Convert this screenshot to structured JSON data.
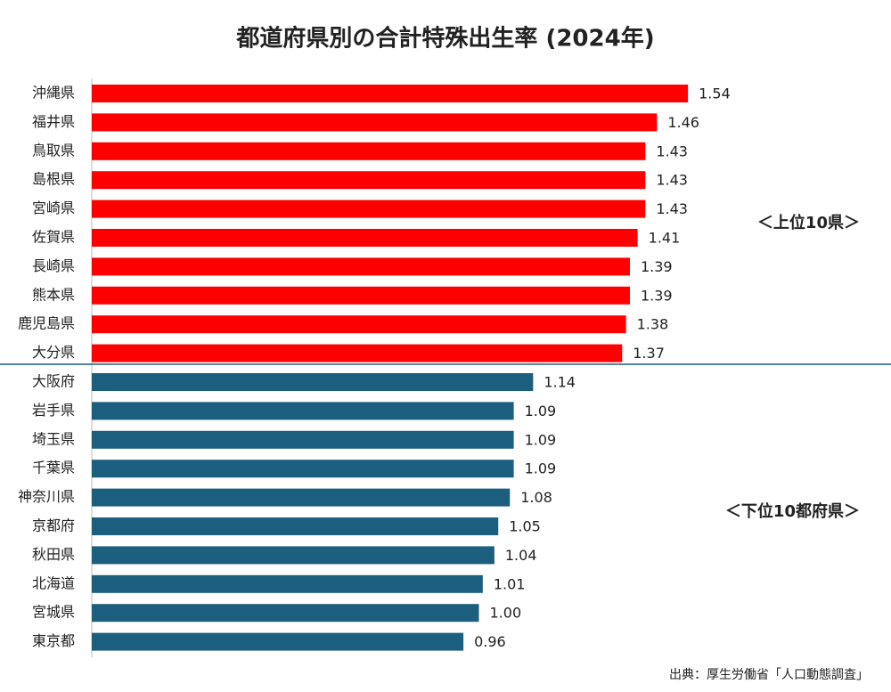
{
  "chart_data": {
    "type": "bar",
    "orientation": "horizontal",
    "title": "都道府県別の合計特殊出生率 (2024年)",
    "source": "出典：厚生労働省「人口動態調査」",
    "xlim": [
      0,
      2
    ],
    "series": [
      {
        "name": "＜上位10県＞",
        "color": "#ff0000",
        "categories": [
          "沖縄県",
          "福井県",
          "鳥取県",
          "島根県",
          "宮崎県",
          "佐賀県",
          "長崎県",
          "熊本県",
          "鹿児島県",
          "大分県"
        ],
        "values": [
          1.54,
          1.46,
          1.43,
          1.43,
          1.43,
          1.41,
          1.39,
          1.39,
          1.38,
          1.37
        ],
        "value_labels": [
          "1.54",
          "1.46",
          "1.43",
          "1.43",
          "1.43",
          "1.41",
          "1.39",
          "1.39",
          "1.38",
          "1.37"
        ]
      },
      {
        "name": "＜下位10都府県＞",
        "color": "#1b5e7e",
        "categories": [
          "大阪府",
          "岩手県",
          "埼玉県",
          "千葉県",
          "神奈川県",
          "京都府",
          "秋田県",
          "北海道",
          "宮城県",
          "東京都"
        ],
        "values": [
          1.14,
          1.09,
          1.09,
          1.09,
          1.08,
          1.05,
          1.04,
          1.01,
          1.0,
          0.96
        ],
        "value_labels": [
          "1.14",
          "1.09",
          "1.09",
          "1.09",
          "1.08",
          "1.05",
          "1.04",
          "1.01",
          "1.00",
          "0.96"
        ]
      }
    ]
  }
}
